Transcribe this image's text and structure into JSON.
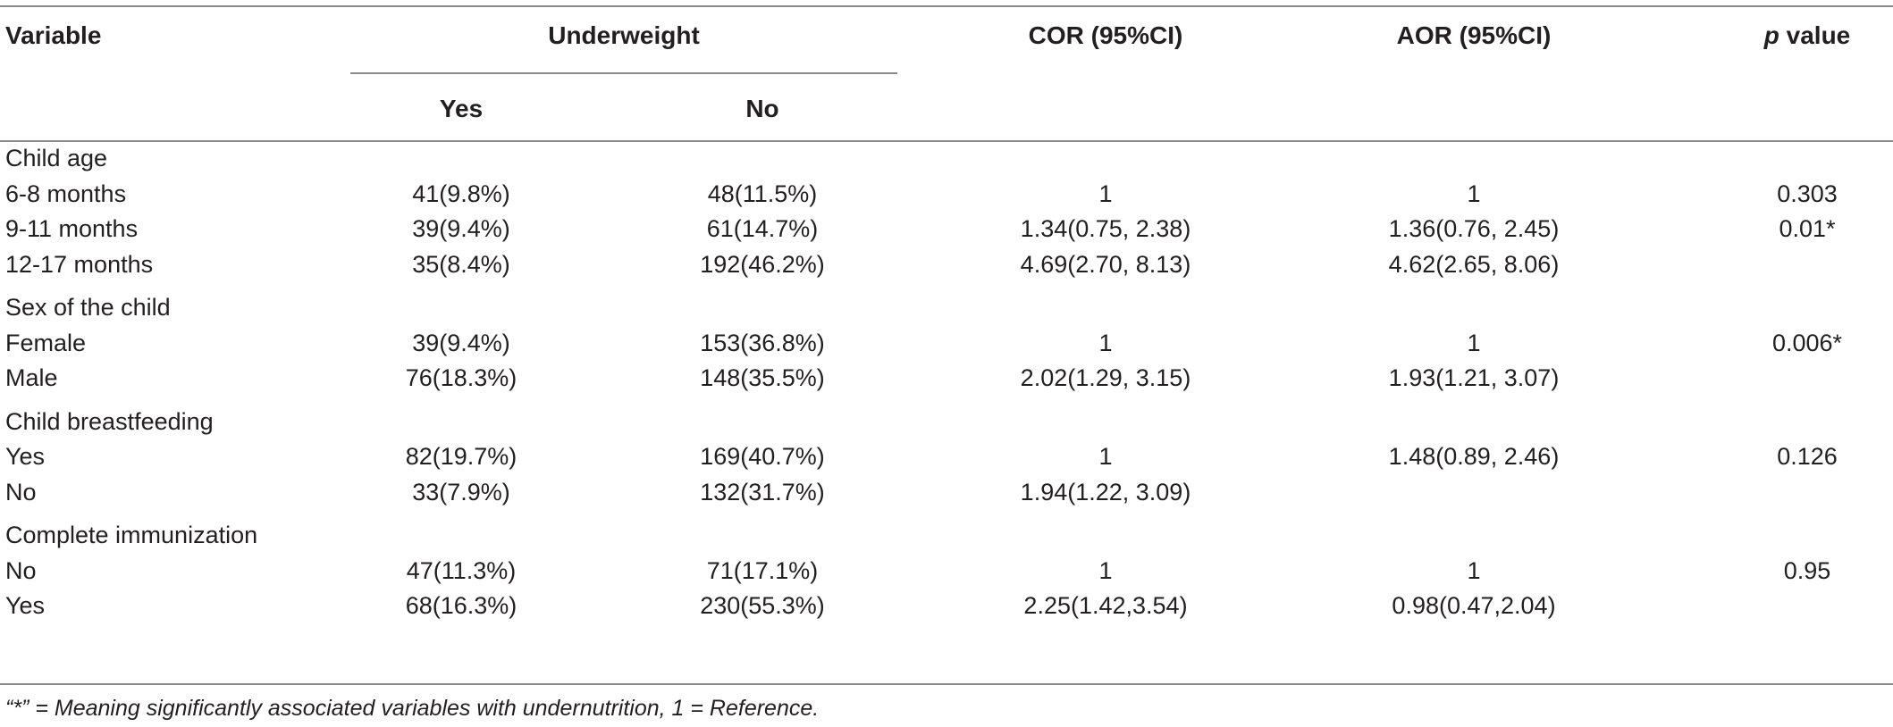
{
  "table": {
    "headers": {
      "variable": "Variable",
      "underweight": "Underweight",
      "yes": "Yes",
      "no": "No",
      "cor": "COR (95%CI)",
      "aor": "AOR (95%CI)",
      "p_value_italic": "p",
      "p_value_rest": " value"
    },
    "groups": [
      {
        "label": "Child age",
        "rows": [
          {
            "label": "6-8 months",
            "yes": "41(9.8%)",
            "no": "48(11.5%)",
            "cor": "1",
            "aor": "1",
            "p": "0.303"
          },
          {
            "label": "9-11 months",
            "yes": "39(9.4%)",
            "no": "61(14.7%)",
            "cor": "1.34(0.75, 2.38)",
            "aor": "1.36(0.76, 2.45)",
            "p": "0.01*"
          },
          {
            "label": "12-17 months",
            "yes": "35(8.4%)",
            "no": "192(46.2%)",
            "cor": "4.69(2.70, 8.13)",
            "aor": "4.62(2.65, 8.06)",
            "p": ""
          }
        ]
      },
      {
        "label": "Sex of the child",
        "rows": [
          {
            "label": "Female",
            "yes": "39(9.4%)",
            "no": "153(36.8%)",
            "cor": "1",
            "aor": "1",
            "p": "0.006*"
          },
          {
            "label": "Male",
            "yes": "76(18.3%)",
            "no": "148(35.5%)",
            "cor": "2.02(1.29, 3.15)",
            "aor": "1.93(1.21, 3.07)",
            "p": ""
          }
        ]
      },
      {
        "label": "Child breastfeeding",
        "rows": [
          {
            "label": "Yes",
            "yes": "82(19.7%)",
            "no": "169(40.7%)",
            "cor": "1",
            "aor": "1.48(0.89, 2.46)",
            "p": "0.126"
          },
          {
            "label": "No",
            "yes": "33(7.9%)",
            "no": "132(31.7%)",
            "cor": "1.94(1.22, 3.09)",
            "aor": "",
            "p": ""
          }
        ]
      },
      {
        "label": "Complete immunization",
        "rows": [
          {
            "label": "No",
            "yes": "47(11.3%)",
            "no": "71(17.1%)",
            "cor": "1",
            "aor": "1",
            "p": "0.95"
          },
          {
            "label": "Yes",
            "yes": "68(16.3%)",
            "no": "230(55.3%)",
            "cor": "2.25(1.42,3.54)",
            "aor": "0.98(0.47,2.04)",
            "p": ""
          }
        ]
      }
    ],
    "footnote": "“*” = Meaning significantly associated variables with undernutrition, 1 = Reference."
  }
}
